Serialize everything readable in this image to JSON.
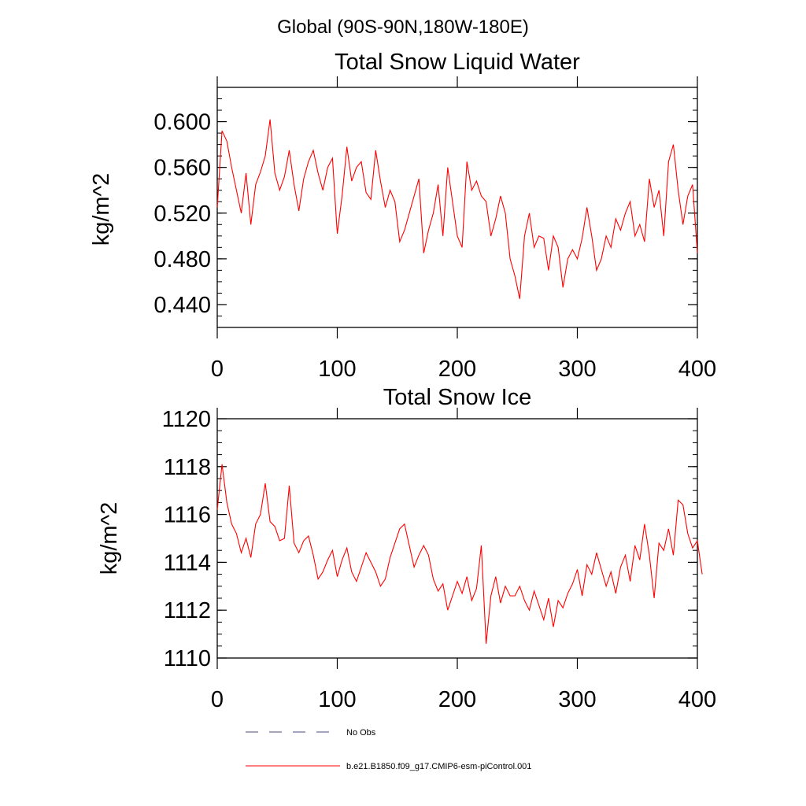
{
  "header": {
    "region_title": "Global (90S-90N,180W-180E)"
  },
  "chart_data": [
    {
      "type": "line",
      "title": "Total Snow Liquid Water",
      "xlabel": "",
      "ylabel": "kg/m^2",
      "xlim": [
        0,
        400
      ],
      "ylim": [
        0.42,
        0.63
      ],
      "xticks": [
        0,
        100,
        200,
        300,
        400
      ],
      "xtick_labels": [
        "0",
        "100",
        "200",
        "300",
        "400"
      ],
      "yticks": [
        0.44,
        0.48,
        0.52,
        0.56,
        0.6
      ],
      "ytick_labels": [
        "0.440",
        "0.480",
        "0.520",
        "0.560",
        "0.600"
      ],
      "grid": false,
      "series": [
        {
          "name": "b.e21.B1850.f09_g17.CMIP6-esm-piControl.001",
          "color": "#ff0000",
          "x_start": 0,
          "x_step": 4,
          "values": [
            0.525,
            0.592,
            0.583,
            0.56,
            0.54,
            0.52,
            0.555,
            0.51,
            0.545,
            0.556,
            0.57,
            0.602,
            0.555,
            0.54,
            0.552,
            0.575,
            0.545,
            0.522,
            0.55,
            0.565,
            0.575,
            0.555,
            0.54,
            0.56,
            0.568,
            0.502,
            0.535,
            0.578,
            0.548,
            0.56,
            0.565,
            0.538,
            0.532,
            0.575,
            0.548,
            0.525,
            0.54,
            0.53,
            0.495,
            0.505,
            0.52,
            0.535,
            0.55,
            0.485,
            0.505,
            0.52,
            0.545,
            0.5,
            0.56,
            0.53,
            0.5,
            0.49,
            0.565,
            0.54,
            0.548,
            0.535,
            0.53,
            0.5,
            0.515,
            0.535,
            0.52,
            0.48,
            0.465,
            0.445,
            0.5,
            0.52,
            0.49,
            0.5,
            0.498,
            0.47,
            0.5,
            0.49,
            0.455,
            0.48,
            0.488,
            0.48,
            0.498,
            0.525,
            0.5,
            0.47,
            0.48,
            0.5,
            0.49,
            0.515,
            0.505,
            0.52,
            0.53,
            0.5,
            0.51,
            0.495,
            0.55,
            0.525,
            0.54,
            0.5,
            0.565,
            0.58,
            0.54,
            0.51,
            0.535,
            0.545,
            0.485
          ]
        }
      ]
    },
    {
      "type": "line",
      "title": "Total Snow Ice",
      "xlabel": "",
      "ylabel": "kg/m^2",
      "xlim": [
        0,
        400
      ],
      "ylim": [
        1110,
        1120
      ],
      "xticks": [
        0,
        100,
        200,
        300,
        400
      ],
      "xtick_labels": [
        "0",
        "100",
        "200",
        "300",
        "400"
      ],
      "yticks": [
        1110,
        1112,
        1114,
        1116,
        1118,
        1120
      ],
      "ytick_labels": [
        "1110",
        "1112",
        "1114",
        "1116",
        "1118",
        "1120"
      ],
      "grid": false,
      "series": [
        {
          "name": "b.e21.B1850.f09_g17.CMIP6-esm-piControl.001",
          "color": "#ff0000",
          "x_start": 0,
          "x_step": 4,
          "values": [
            1116.2,
            1118.1,
            1116.5,
            1115.6,
            1115.2,
            1114.4,
            1115.0,
            1114.2,
            1115.6,
            1116.0,
            1117.3,
            1115.7,
            1115.5,
            1114.9,
            1115.0,
            1117.2,
            1114.8,
            1114.4,
            1114.9,
            1115.1,
            1114.3,
            1113.3,
            1113.6,
            1114.1,
            1114.5,
            1113.4,
            1114.1,
            1114.6,
            1113.6,
            1113.2,
            1113.8,
            1114.4,
            1114.0,
            1113.6,
            1113.0,
            1113.3,
            1114.2,
            1114.8,
            1115.4,
            1115.6,
            1114.7,
            1113.8,
            1114.3,
            1114.7,
            1114.3,
            1113.3,
            1112.8,
            1113.1,
            1112.0,
            1112.6,
            1113.2,
            1112.7,
            1113.4,
            1112.4,
            1112.9,
            1114.7,
            1110.6,
            1112.6,
            1113.4,
            1112.3,
            1113.0,
            1112.6,
            1112.6,
            1113.0,
            1112.4,
            1112.0,
            1112.8,
            1112.2,
            1111.6,
            1112.5,
            1111.3,
            1112.4,
            1112.1,
            1112.7,
            1113.1,
            1113.7,
            1112.6,
            1113.9,
            1113.5,
            1114.4,
            1113.7,
            1113.0,
            1113.6,
            1112.7,
            1113.8,
            1114.3,
            1113.2,
            1114.7,
            1114.1,
            1115.6,
            1114.3,
            1112.5,
            1114.8,
            1114.5,
            1115.4,
            1114.3,
            1116.6,
            1116.4,
            1115.2,
            1114.6,
            1114.9,
            1113.5
          ]
        }
      ]
    }
  ],
  "legend": [
    {
      "label": "No Obs",
      "style": "dashed",
      "color": "#4a4a7a"
    },
    {
      "label": "b.e21.B1850.f09_g17.CMIP6-esm-piControl.001",
      "style": "solid",
      "color": "#ff0000"
    }
  ]
}
